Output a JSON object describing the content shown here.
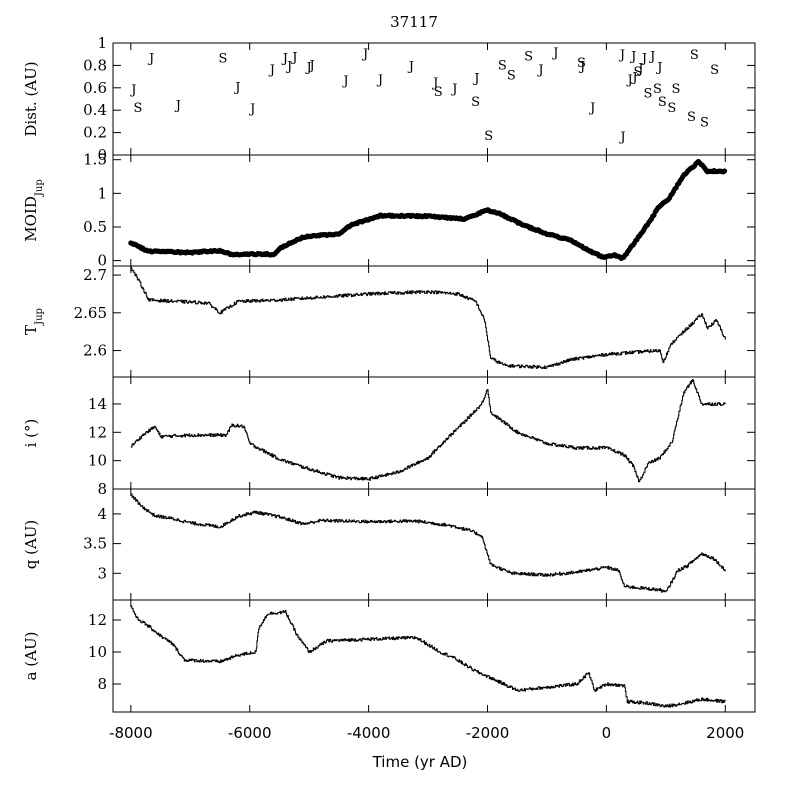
{
  "figure": {
    "title": "37117",
    "xlabel": "Time (yr AD)"
  },
  "chart_data": {
    "type": "line",
    "title": "37117",
    "xlabel": "Time (yr AD)",
    "xlim": [
      -8300,
      2500
    ],
    "xticks": [
      -8000,
      -6000,
      -4000,
      -2000,
      0,
      2000
    ],
    "grid": false,
    "panels": [
      {
        "id": "dist",
        "type": "scatter",
        "ylabel": "Dist. (AU)",
        "ylim": [
          0,
          1
        ],
        "yticks": [
          0,
          0.2,
          0.4,
          0.6,
          0.8,
          1
        ],
        "ytick_labels": [
          "0",
          "0.2",
          "0.4",
          "0.6",
          "0.8",
          "1"
        ],
        "points": [
          {
            "x": -7950,
            "y": 0.59,
            "label": "J"
          },
          {
            "x": -7880,
            "y": 0.43,
            "label": "S"
          },
          {
            "x": -7650,
            "y": 0.87,
            "label": "J"
          },
          {
            "x": -7200,
            "y": 0.45,
            "label": "J"
          },
          {
            "x": -6450,
            "y": 0.87,
            "label": "S"
          },
          {
            "x": -6200,
            "y": 0.61,
            "label": "J"
          },
          {
            "x": -5950,
            "y": 0.42,
            "label": "J"
          },
          {
            "x": -5620,
            "y": 0.77,
            "label": "J"
          },
          {
            "x": -5400,
            "y": 0.87,
            "label": "J"
          },
          {
            "x": -5330,
            "y": 0.8,
            "label": "J"
          },
          {
            "x": -5240,
            "y": 0.88,
            "label": "J"
          },
          {
            "x": -5000,
            "y": 0.79,
            "label": "J"
          },
          {
            "x": -4950,
            "y": 0.81,
            "label": "J"
          },
          {
            "x": -4380,
            "y": 0.67,
            "label": "J"
          },
          {
            "x": -4050,
            "y": 0.91,
            "label": "J"
          },
          {
            "x": -3800,
            "y": 0.68,
            "label": "J"
          },
          {
            "x": -3280,
            "y": 0.8,
            "label": "J"
          },
          {
            "x": -2870,
            "y": 0.65,
            "label": "J"
          },
          {
            "x": -2830,
            "y": 0.57,
            "label": "S"
          },
          {
            "x": -2550,
            "y": 0.6,
            "label": "J"
          },
          {
            "x": -2200,
            "y": 0.48,
            "label": "S"
          },
          {
            "x": -2180,
            "y": 0.69,
            "label": "J"
          },
          {
            "x": -1980,
            "y": 0.18,
            "label": "S"
          },
          {
            "x": -1750,
            "y": 0.81,
            "label": "S"
          },
          {
            "x": -1600,
            "y": 0.72,
            "label": "S"
          },
          {
            "x": -1310,
            "y": 0.89,
            "label": "S"
          },
          {
            "x": -1100,
            "y": 0.77,
            "label": "J"
          },
          {
            "x": -850,
            "y": 0.92,
            "label": "J"
          },
          {
            "x": -420,
            "y": 0.83,
            "label": "S"
          },
          {
            "x": -400,
            "y": 0.8,
            "label": "J"
          },
          {
            "x": -230,
            "y": 0.43,
            "label": "J"
          },
          {
            "x": 270,
            "y": 0.9,
            "label": "J"
          },
          {
            "x": 280,
            "y": 0.17,
            "label": "J"
          },
          {
            "x": 400,
            "y": 0.68,
            "label": "J"
          },
          {
            "x": 460,
            "y": 0.89,
            "label": "J"
          },
          {
            "x": 480,
            "y": 0.7,
            "label": "J"
          },
          {
            "x": 530,
            "y": 0.75,
            "label": "S"
          },
          {
            "x": 580,
            "y": 0.78,
            "label": "J"
          },
          {
            "x": 640,
            "y": 0.87,
            "label": "J"
          },
          {
            "x": 700,
            "y": 0.56,
            "label": "S"
          },
          {
            "x": 780,
            "y": 0.89,
            "label": "J"
          },
          {
            "x": 860,
            "y": 0.6,
            "label": "S"
          },
          {
            "x": 900,
            "y": 0.79,
            "label": "J"
          },
          {
            "x": 940,
            "y": 0.48,
            "label": "S"
          },
          {
            "x": 1170,
            "y": 0.6,
            "label": "S"
          },
          {
            "x": 1430,
            "y": 0.35,
            "label": "S"
          },
          {
            "x": 1480,
            "y": 0.9,
            "label": "S"
          },
          {
            "x": 1650,
            "y": 0.3,
            "label": "S"
          },
          {
            "x": 1820,
            "y": 0.77,
            "label": "S"
          },
          {
            "x": 1100,
            "y": 0.43,
            "label": "S"
          }
        ]
      },
      {
        "id": "moid",
        "type": "scatter",
        "ylabel": "MOID",
        "ylabel_sub": "Jup",
        "ylim": [
          -0.08,
          1.57
        ],
        "yticks": [
          0,
          0.5,
          1,
          1.5
        ],
        "ytick_labels": [
          "0",
          "0.5",
          "1",
          "1.5"
        ],
        "knots": [
          [
            -8000,
            0.27
          ],
          [
            -7850,
            0.2
          ],
          [
            -7700,
            0.14
          ],
          [
            -7000,
            0.12
          ],
          [
            -6500,
            0.15
          ],
          [
            -6300,
            0.09
          ],
          [
            -5750,
            0.1
          ],
          [
            -5600,
            0.09
          ],
          [
            -5500,
            0.18
          ],
          [
            -5300,
            0.27
          ],
          [
            -5100,
            0.35
          ],
          [
            -4500,
            0.4
          ],
          [
            -4300,
            0.53
          ],
          [
            -3800,
            0.67
          ],
          [
            -3000,
            0.66
          ],
          [
            -2400,
            0.62
          ],
          [
            -2000,
            0.75
          ],
          [
            -1850,
            0.72
          ],
          [
            -1400,
            0.53
          ],
          [
            -1000,
            0.4
          ],
          [
            -600,
            0.3
          ],
          [
            -250,
            0.13
          ],
          [
            -50,
            0.05
          ],
          [
            150,
            0.08
          ],
          [
            250,
            0.04
          ],
          [
            300,
            0.06
          ],
          [
            500,
            0.3
          ],
          [
            700,
            0.55
          ],
          [
            900,
            0.82
          ],
          [
            1050,
            0.92
          ],
          [
            1300,
            1.27
          ],
          [
            1550,
            1.47
          ],
          [
            1700,
            1.33
          ],
          [
            2000,
            1.33
          ]
        ]
      },
      {
        "id": "tjup",
        "type": "line",
        "ylabel": "T",
        "ylabel_sub": "Jup",
        "ylim": [
          2.565,
          2.712
        ],
        "yticks": [
          2.6,
          2.65,
          2.7
        ],
        "ytick_labels": [
          "2.6",
          "2.65",
          "2.7"
        ],
        "knots": [
          [
            -8000,
            2.71
          ],
          [
            -7850,
            2.69
          ],
          [
            -7700,
            2.667
          ],
          [
            -6700,
            2.663
          ],
          [
            -6500,
            2.65
          ],
          [
            -6200,
            2.665
          ],
          [
            -5500,
            2.667
          ],
          [
            -4000,
            2.675
          ],
          [
            -3000,
            2.678
          ],
          [
            -2500,
            2.675
          ],
          [
            -2200,
            2.665
          ],
          [
            -2050,
            2.64
          ],
          [
            -1950,
            2.59
          ],
          [
            -1700,
            2.58
          ],
          [
            -1000,
            2.578
          ],
          [
            -600,
            2.588
          ],
          [
            0,
            2.595
          ],
          [
            500,
            2.598
          ],
          [
            900,
            2.6
          ],
          [
            950,
            2.585
          ],
          [
            1100,
            2.61
          ],
          [
            1300,
            2.625
          ],
          [
            1600,
            2.648
          ],
          [
            1700,
            2.63
          ],
          [
            1850,
            2.64
          ],
          [
            2000,
            2.615
          ]
        ]
      },
      {
        "id": "incl",
        "type": "line",
        "ylabel": "i (°)",
        "ylim": [
          8.0,
          15.9
        ],
        "yticks": [
          8,
          10,
          12,
          14
        ],
        "ytick_labels": [
          "8",
          "10",
          "12",
          "14"
        ],
        "knots": [
          [
            -8000,
            11.0
          ],
          [
            -7800,
            11.8
          ],
          [
            -7600,
            12.4
          ],
          [
            -7500,
            11.7
          ],
          [
            -7000,
            11.8
          ],
          [
            -6400,
            11.8
          ],
          [
            -6300,
            12.5
          ],
          [
            -6100,
            12.4
          ],
          [
            -6000,
            11.2
          ],
          [
            -5500,
            10.1
          ],
          [
            -5000,
            9.4
          ],
          [
            -4500,
            8.8
          ],
          [
            -4000,
            8.7
          ],
          [
            -3500,
            9.2
          ],
          [
            -3000,
            10.2
          ],
          [
            -2700,
            11.5
          ],
          [
            -2400,
            12.7
          ],
          [
            -2100,
            14.0
          ],
          [
            -2000,
            15.1
          ],
          [
            -1950,
            13.4
          ],
          [
            -1500,
            12.0
          ],
          [
            -1000,
            11.2
          ],
          [
            -500,
            10.9
          ],
          [
            0,
            10.9
          ],
          [
            300,
            10.4
          ],
          [
            450,
            9.6
          ],
          [
            550,
            8.5
          ],
          [
            700,
            9.8
          ],
          [
            900,
            10.2
          ],
          [
            1100,
            11.3
          ],
          [
            1300,
            14.8
          ],
          [
            1450,
            15.7
          ],
          [
            1600,
            14.0
          ],
          [
            2000,
            14.0
          ]
        ]
      },
      {
        "id": "q",
        "type": "line",
        "ylabel": "q (AU)",
        "ylim": [
          2.55,
          4.42
        ],
        "yticks": [
          3,
          3.5,
          4
        ],
        "ytick_labels": [
          "3",
          "3.5",
          "4"
        ],
        "knots": [
          [
            -8000,
            4.33
          ],
          [
            -7850,
            4.15
          ],
          [
            -7600,
            3.97
          ],
          [
            -7300,
            3.92
          ],
          [
            -7000,
            3.85
          ],
          [
            -6500,
            3.78
          ],
          [
            -6200,
            3.96
          ],
          [
            -5900,
            4.03
          ],
          [
            -5500,
            3.95
          ],
          [
            -5100,
            3.83
          ],
          [
            -4800,
            3.89
          ],
          [
            -4000,
            3.87
          ],
          [
            -3200,
            3.88
          ],
          [
            -2600,
            3.8
          ],
          [
            -2300,
            3.72
          ],
          [
            -2100,
            3.63
          ],
          [
            -1950,
            3.15
          ],
          [
            -1600,
            3.0
          ],
          [
            -1000,
            2.97
          ],
          [
            -500,
            3.02
          ],
          [
            0,
            3.1
          ],
          [
            200,
            3.05
          ],
          [
            300,
            2.78
          ],
          [
            600,
            2.75
          ],
          [
            900,
            2.72
          ],
          [
            1000,
            2.68
          ],
          [
            1200,
            3.05
          ],
          [
            1350,
            3.12
          ],
          [
            1600,
            3.33
          ],
          [
            1800,
            3.25
          ],
          [
            2000,
            3.05
          ]
        ]
      },
      {
        "id": "a",
        "type": "line",
        "ylabel": "a (AU)",
        "ylim": [
          6.25,
          13.25
        ],
        "yticks": [
          8,
          10,
          12
        ],
        "ytick_labels": [
          "8",
          "10",
          "12"
        ],
        "knots": [
          [
            -8000,
            12.9
          ],
          [
            -7900,
            12.1
          ],
          [
            -7700,
            11.6
          ],
          [
            -7500,
            11.0
          ],
          [
            -7300,
            10.5
          ],
          [
            -7100,
            9.5
          ],
          [
            -6500,
            9.4
          ],
          [
            -6200,
            9.8
          ],
          [
            -5900,
            10.0
          ],
          [
            -5850,
            11.5
          ],
          [
            -5700,
            12.4
          ],
          [
            -5400,
            12.5
          ],
          [
            -5200,
            11.0
          ],
          [
            -5000,
            10.0
          ],
          [
            -4700,
            10.7
          ],
          [
            -4000,
            10.8
          ],
          [
            -3200,
            10.9
          ],
          [
            -2800,
            10.0
          ],
          [
            -2600,
            9.7
          ],
          [
            -2200,
            8.8
          ],
          [
            -1900,
            8.3
          ],
          [
            -1500,
            7.6
          ],
          [
            -1000,
            7.8
          ],
          [
            -500,
            8.0
          ],
          [
            -300,
            8.7
          ],
          [
            -200,
            7.6
          ],
          [
            0,
            8.0
          ],
          [
            300,
            7.9
          ],
          [
            350,
            6.9
          ],
          [
            700,
            6.8
          ],
          [
            1000,
            6.6
          ],
          [
            1300,
            6.8
          ],
          [
            1600,
            7.05
          ],
          [
            2000,
            6.9
          ]
        ]
      }
    ]
  }
}
